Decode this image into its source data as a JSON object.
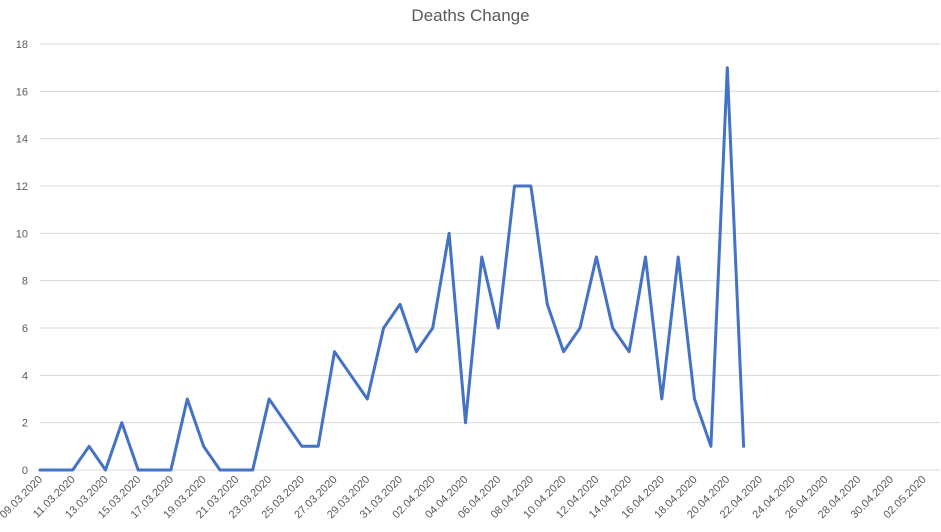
{
  "chart_data": {
    "type": "line",
    "title": "Deaths Change",
    "xlabel": "",
    "ylabel": "",
    "ylim": [
      0,
      18
    ],
    "y_ticks": [
      0,
      2,
      4,
      6,
      8,
      10,
      12,
      14,
      16,
      18
    ],
    "grid": true,
    "x_axis_range": [
      "09.03.2020",
      "03.05.2020"
    ],
    "x_tick_labels": [
      "09.03.2020",
      "11.03.2020",
      "13.03.2020",
      "15.03.2020",
      "17.03.2020",
      "19.03.2020",
      "21.03.2020",
      "23.03.2020",
      "25.03.2020",
      "27.03.2020",
      "29.03.2020",
      "31.03.2020",
      "02.04.2020",
      "04.04.2020",
      "06.04.2020",
      "08.04.2020",
      "10.04.2020",
      "12.04.2020",
      "14.04.2020",
      "16.04.2020",
      "18.04.2020",
      "20.04.2020",
      "22.04.2020",
      "24.04.2020",
      "26.04.2020",
      "28.04.2020",
      "30.04.2020",
      "02.05.2020"
    ],
    "x": [
      "09.03.2020",
      "10.03.2020",
      "11.03.2020",
      "12.03.2020",
      "13.03.2020",
      "14.03.2020",
      "15.03.2020",
      "16.03.2020",
      "17.03.2020",
      "18.03.2020",
      "19.03.2020",
      "20.03.2020",
      "21.03.2020",
      "22.03.2020",
      "23.03.2020",
      "24.03.2020",
      "25.03.2020",
      "26.03.2020",
      "27.03.2020",
      "28.03.2020",
      "29.03.2020",
      "30.03.2020",
      "31.03.2020",
      "01.04.2020",
      "02.04.2020",
      "03.04.2020",
      "04.04.2020",
      "05.04.2020",
      "06.04.2020",
      "07.04.2020",
      "08.04.2020",
      "09.04.2020",
      "10.04.2020",
      "11.04.2020",
      "12.04.2020",
      "13.04.2020",
      "14.04.2020",
      "15.04.2020",
      "16.04.2020",
      "17.04.2020",
      "18.04.2020",
      "19.04.2020",
      "20.04.2020",
      "21.04.2020"
    ],
    "series": [
      {
        "color": "#4472c4",
        "values": [
          0,
          0,
          0,
          1,
          0,
          2,
          0,
          0,
          0,
          3,
          1,
          0,
          0,
          0,
          3,
          2,
          1,
          1,
          5,
          4,
          3,
          6,
          7,
          5,
          6,
          10,
          2,
          9,
          6,
          12,
          12,
          7,
          5,
          6,
          9,
          6,
          5,
          9,
          3,
          9,
          3,
          1,
          17,
          1
        ]
      }
    ],
    "legend": "none"
  }
}
